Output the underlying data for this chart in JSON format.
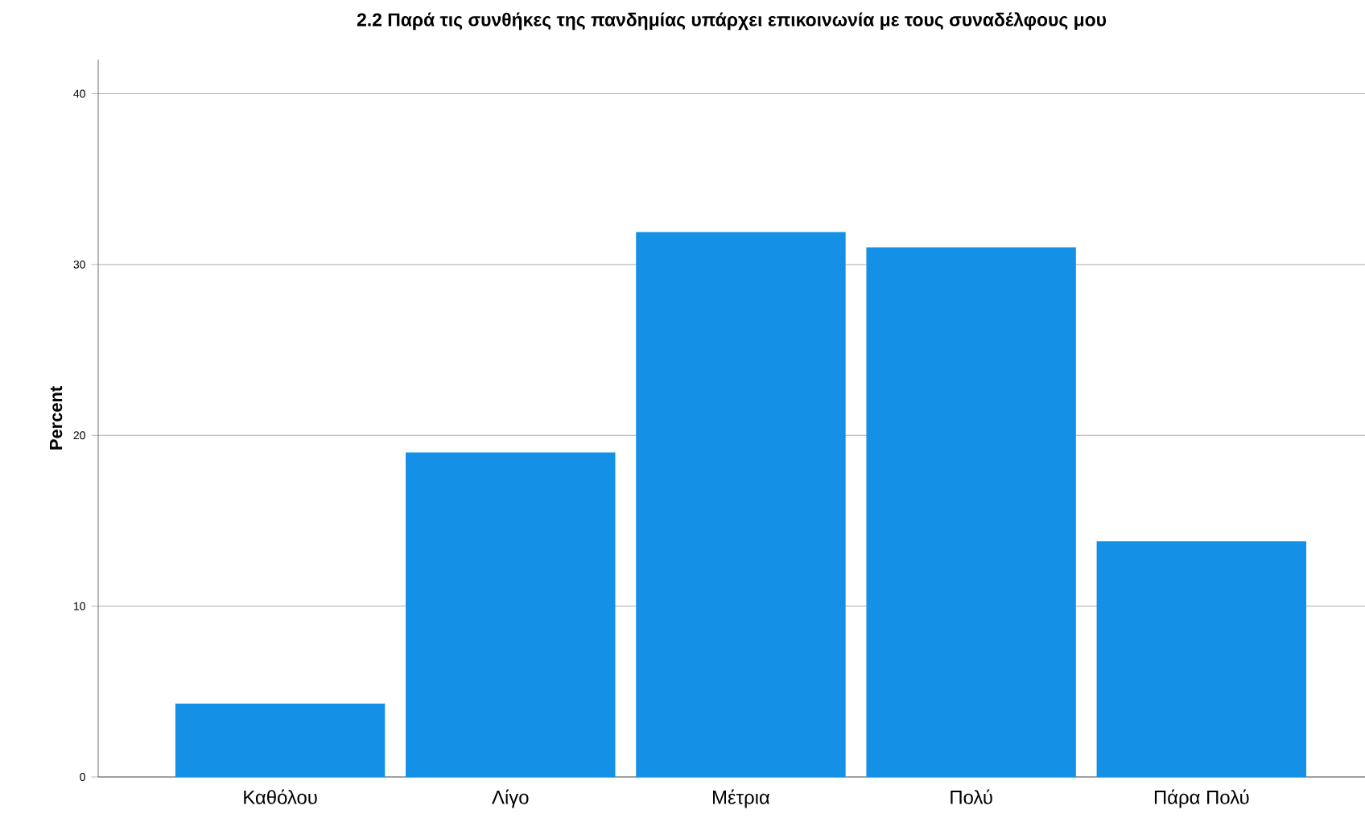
{
  "chart_data": {
    "type": "bar",
    "title": "2.2  Παρά τις συνθήκες της πανδημίας υπάρχει επικοινωνία με τους συναδέλφους μου",
    "ylabel": "Percent",
    "categories": [
      "Καθόλου",
      "Λίγο",
      "Μέτρια",
      "Πολύ",
      "Πάρα Πολύ"
    ],
    "values": [
      4.3,
      19.0,
      31.9,
      31.0,
      13.8
    ],
    "color": "#1490e6",
    "ylim": [
      0,
      42
    ],
    "yticks": [
      0,
      10,
      20,
      30,
      40
    ],
    "grid": "y"
  }
}
